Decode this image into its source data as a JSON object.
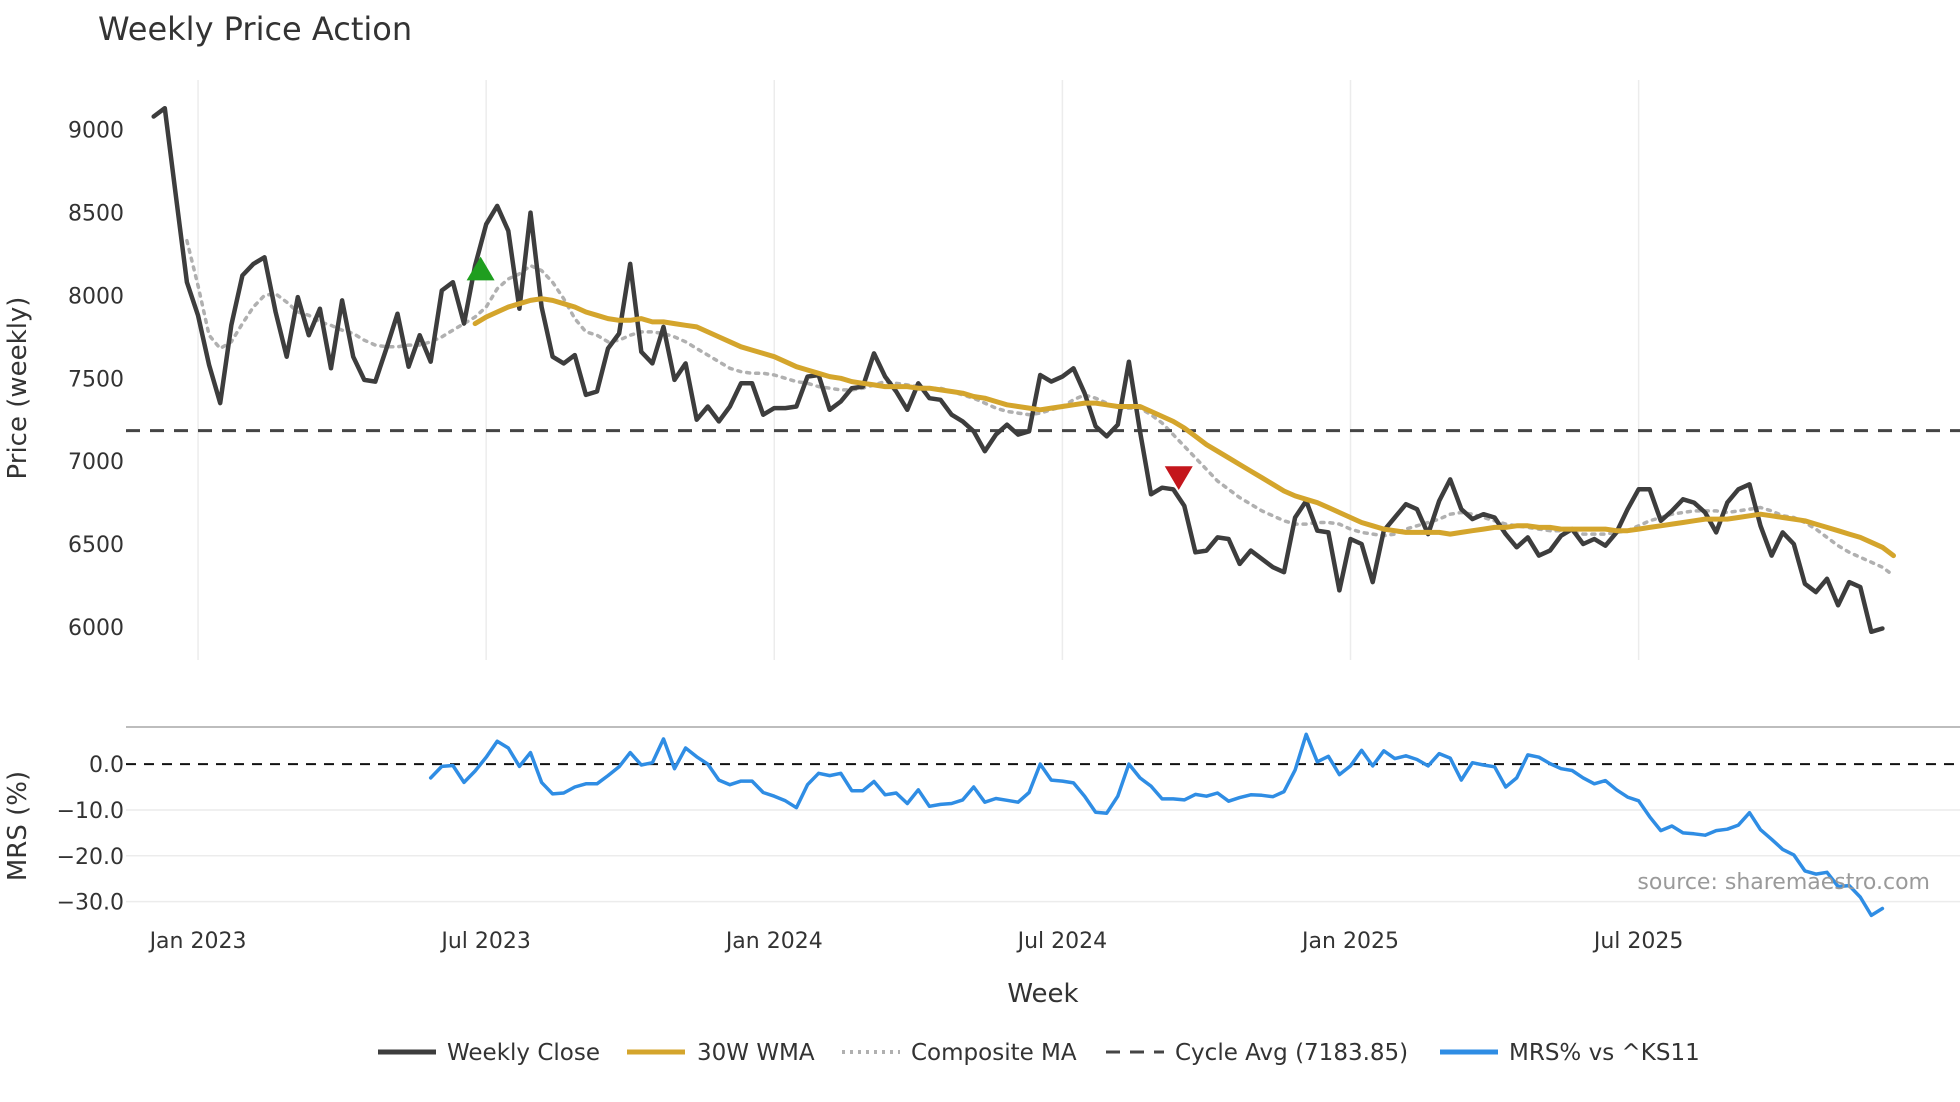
{
  "chart_data": [
    {
      "type": "line",
      "title": "Weekly Price Action",
      "xlabel": "Week",
      "ylabel": "Price (weekly)",
      "ylim": [
        5800,
        9300
      ],
      "yticks": [
        6000,
        6500,
        7000,
        7500,
        8000,
        8500,
        9000
      ],
      "xticks": [
        {
          "week": 4,
          "label": "Jan 2023"
        },
        {
          "week": 30,
          "label": "Jul 2023"
        },
        {
          "week": 56,
          "label": "Jan 2024"
        },
        {
          "week": 82,
          "label": "Jul 2024"
        },
        {
          "week": 108,
          "label": "Jan 2025"
        },
        {
          "week": 134,
          "label": "Jul 2025"
        }
      ],
      "week_range": [
        -2.5,
        163
      ],
      "series": [
        {
          "name": "Weekly Close",
          "color": "#3d3d3d",
          "values": [
            9080,
            9130,
            8600,
            8080,
            7880,
            7580,
            7350,
            7820,
            8120,
            8190,
            8230,
            7900,
            7630,
            7990,
            7760,
            7920,
            7560,
            7970,
            7630,
            7490,
            7480,
            7680,
            7890,
            7570,
            7760,
            7600,
            8030,
            8080,
            7830,
            8180,
            8430,
            8540,
            8390,
            7920,
            8500,
            7930,
            7630,
            7590,
            7640,
            7400,
            7420,
            7680,
            7770,
            8190,
            7660,
            7590,
            7810,
            7490,
            7590,
            7250,
            7330,
            7240,
            7330,
            7470,
            7470,
            7280,
            7320,
            7320,
            7330,
            7510,
            7520,
            7310,
            7360,
            7440,
            7450,
            7650,
            7510,
            7420,
            7310,
            7470,
            7380,
            7370,
            7280,
            7240,
            7180,
            7060,
            7160,
            7220,
            7160,
            7180,
            7520,
            7480,
            7510,
            7560,
            7410,
            7210,
            7150,
            7220,
            7600,
            7180,
            6800,
            6840,
            6830,
            6730,
            6450,
            6460,
            6540,
            6530,
            6380,
            6460,
            6410,
            6360,
            6330,
            6660,
            6760,
            6580,
            6570,
            6220,
            6530,
            6500,
            6270,
            6580,
            6660,
            6740,
            6710,
            6560,
            6760,
            6890,
            6710,
            6650,
            6680,
            6660,
            6560,
            6480,
            6540,
            6430,
            6460,
            6550,
            6590,
            6500,
            6530,
            6490,
            6570,
            6710,
            6830,
            6830,
            6640,
            6700,
            6770,
            6750,
            6690,
            6570,
            6750,
            6830,
            6860,
            6610,
            6430,
            6570,
            6500,
            6260,
            6210,
            6290,
            6130,
            6270,
            6240,
            5970,
            5990
          ]
        },
        {
          "name": "30W WMA",
          "color": "#d4a52c",
          "start": 29,
          "values": [
            7830,
            7870,
            7900,
            7930,
            7950,
            7970,
            7980,
            7970,
            7950,
            7930,
            7900,
            7880,
            7860,
            7850,
            7850,
            7860,
            7840,
            7840,
            7830,
            7820,
            7810,
            7780,
            7750,
            7720,
            7690,
            7670,
            7650,
            7630,
            7600,
            7570,
            7550,
            7530,
            7510,
            7500,
            7480,
            7470,
            7460,
            7450,
            7450,
            7450,
            7440,
            7440,
            7430,
            7420,
            7410,
            7390,
            7380,
            7360,
            7340,
            7330,
            7320,
            7310,
            7320,
            7330,
            7340,
            7350,
            7350,
            7340,
            7330,
            7330,
            7330,
            7300,
            7270,
            7240,
            7200,
            7150,
            7100,
            7060,
            7020,
            6980,
            6940,
            6900,
            6860,
            6820,
            6790,
            6770,
            6750,
            6720,
            6690,
            6660,
            6630,
            6610,
            6590,
            6580,
            6570,
            6570,
            6570,
            6570,
            6560,
            6570,
            6580,
            6590,
            6600,
            6600,
            6610,
            6610,
            6600,
            6600,
            6590,
            6590,
            6590,
            6590,
            6590,
            6580,
            6580,
            6590,
            6600,
            6610,
            6620,
            6630,
            6640,
            6650,
            6650,
            6650,
            6660,
            6670,
            6680,
            6670,
            6660,
            6650,
            6640,
            6620,
            6600,
            6580,
            6560,
            6540,
            6510,
            6480,
            6430
          ]
        },
        {
          "name": "Composite MA",
          "color": "#b0b0b0",
          "start": 3,
          "values": [
            8330,
            8060,
            7760,
            7680,
            7720,
            7830,
            7930,
            8000,
            8010,
            7960,
            7900,
            7880,
            7840,
            7820,
            7790,
            7770,
            7730,
            7700,
            7690,
            7690,
            7700,
            7700,
            7720,
            7750,
            7790,
            7830,
            7870,
            7930,
            8040,
            8100,
            8130,
            8180,
            8150,
            8080,
            7980,
            7860,
            7780,
            7760,
            7720,
            7730,
            7760,
            7780,
            7780,
            7770,
            7750,
            7720,
            7680,
            7640,
            7600,
            7560,
            7540,
            7530,
            7530,
            7520,
            7500,
            7480,
            7470,
            7450,
            7440,
            7430,
            7430,
            7440,
            7460,
            7480,
            7470,
            7460,
            7450,
            7440,
            7440,
            7420,
            7400,
            7380,
            7350,
            7320,
            7300,
            7290,
            7280,
            7290,
            7310,
            7330,
            7370,
            7400,
            7380,
            7350,
            7320,
            7320,
            7320,
            7280,
            7230,
            7160,
            7090,
            7020,
            6950,
            6880,
            6830,
            6780,
            6740,
            6700,
            6670,
            6640,
            6620,
            6620,
            6630,
            6630,
            6620,
            6590,
            6570,
            6560,
            6550,
            6560,
            6590,
            6610,
            6630,
            6650,
            6680,
            6690,
            6680,
            6660,
            6640,
            6620,
            6610,
            6600,
            6590,
            6580,
            6580,
            6570,
            6560,
            6560,
            6560,
            6570,
            6580,
            6610,
            6640,
            6660,
            6680,
            6690,
            6700,
            6700,
            6700,
            6690,
            6700,
            6710,
            6720,
            6700,
            6670,
            6660,
            6630,
            6590,
            6540,
            6490,
            6450,
            6420,
            6390,
            6360,
            6310
          ]
        },
        {
          "name": "Cycle Avg (7183.85)",
          "color": "#454545",
          "constant": 7183.85
        }
      ],
      "markers": [
        {
          "type": "buy",
          "shape": "triangle-up",
          "color": "#1f9e1f",
          "week": 29.5,
          "value": 8150
        },
        {
          "type": "sell",
          "shape": "triangle-down",
          "color": "#c4161c",
          "week": 92.5,
          "value": 6910
        }
      ]
    },
    {
      "type": "line",
      "ylabel": "MRS (%)",
      "ylim": [
        -34,
        7
      ],
      "yticks": [
        0.0,
        -10.0,
        -20.0,
        -30.0
      ],
      "ytick_labels": [
        "0.0",
        "−10.0",
        "−20.0",
        "−30.0"
      ],
      "series": [
        {
          "name": "MRS% vs ^KS11",
          "color": "#2f8de4",
          "start": 25,
          "values": [
            -3.0,
            -0.5,
            -0.3,
            -4.0,
            -1.5,
            1.5,
            5.0,
            3.5,
            -0.5,
            2.5,
            -4.0,
            -6.5,
            -6.3,
            -5.0,
            -4.3,
            -4.3,
            -2.5,
            -0.6,
            2.5,
            -0.2,
            0.3,
            5.5,
            -1.0,
            3.5,
            1.6,
            0.0,
            -3.5,
            -4.5,
            -3.7,
            -3.7,
            -6.2,
            -7.0,
            -8.0,
            -9.5,
            -4.5,
            -2.0,
            -2.5,
            -2.0,
            -5.8,
            -5.8,
            -3.8,
            -6.7,
            -6.3,
            -8.6,
            -5.6,
            -9.2,
            -8.8,
            -8.6,
            -7.8,
            -5.0,
            -8.3,
            -7.5,
            -7.9,
            -8.3,
            -6.2,
            0.0,
            -3.5,
            -3.7,
            -4.1,
            -7.0,
            -10.5,
            -10.7,
            -7.0,
            0.0,
            -3.0,
            -4.8,
            -7.6,
            -7.6,
            -7.8,
            -6.6,
            -7.0,
            -6.3,
            -8.1,
            -7.3,
            -6.7,
            -6.8,
            -7.1,
            -6.0,
            -1.3,
            6.5,
            0.5,
            1.7,
            -2.3,
            -0.4,
            3.0,
            -0.4,
            2.9,
            1.2,
            1.8,
            1.0,
            -0.4,
            2.3,
            1.3,
            -3.5,
            0.3,
            -0.2,
            -0.6,
            -5.0,
            -3.0,
            2.0,
            1.5,
            0.1,
            -1.0,
            -1.4,
            -3.0,
            -4.3,
            -3.6,
            -5.6,
            -7.2,
            -8.0,
            -11.5,
            -14.5,
            -13.5,
            -15.0,
            -15.2,
            -15.5,
            -14.5,
            -14.2,
            -13.3,
            -10.6,
            -14.3,
            -16.4,
            -18.6,
            -19.8,
            -23.3,
            -24.0,
            -23.6,
            -26.7,
            -26.5,
            -29.0,
            -33.0,
            -31.5
          ]
        },
        {
          "name": "zero-line",
          "color": "#111111",
          "constant": 0.0
        }
      ]
    }
  ],
  "legend": [
    {
      "label": "Weekly Close",
      "color": "#3d3d3d",
      "style": "solid"
    },
    {
      "label": "30W WMA",
      "color": "#d4a52c",
      "style": "solid"
    },
    {
      "label": "Composite MA",
      "color": "#b0b0b0",
      "style": "dotted"
    },
    {
      "label": "Cycle Avg (7183.85)",
      "color": "#454545",
      "style": "dashed"
    },
    {
      "label": "MRS% vs ^KS11",
      "color": "#2f8de4",
      "style": "solid"
    }
  ],
  "source": "source: sharemaestro.com"
}
